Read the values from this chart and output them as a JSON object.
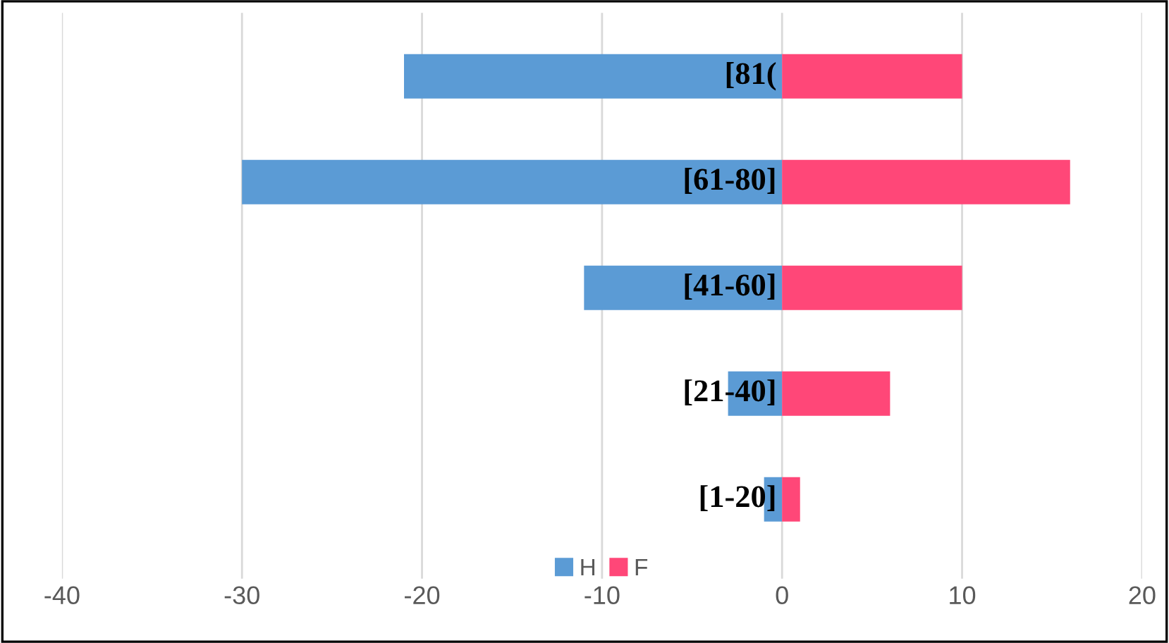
{
  "chart_data": {
    "type": "bar",
    "orientation": "horizontal",
    "categories": [
      "[81(",
      "[61-80]",
      "[41-60]",
      "[21-40]",
      "[1-20]"
    ],
    "series": [
      {
        "name": "H",
        "color": "#5b9bd5",
        "values": [
          -21,
          -30,
          -11,
          -3,
          -1
        ]
      },
      {
        "name": "F",
        "color": "#ff4778",
        "values": [
          10,
          16,
          10,
          6,
          1
        ]
      }
    ],
    "stacked": true,
    "xlim": [
      -40,
      20
    ],
    "xticks": [
      -40,
      -30,
      -20,
      -10,
      0,
      10,
      20
    ],
    "grid": "x",
    "legend": "bottom"
  }
}
